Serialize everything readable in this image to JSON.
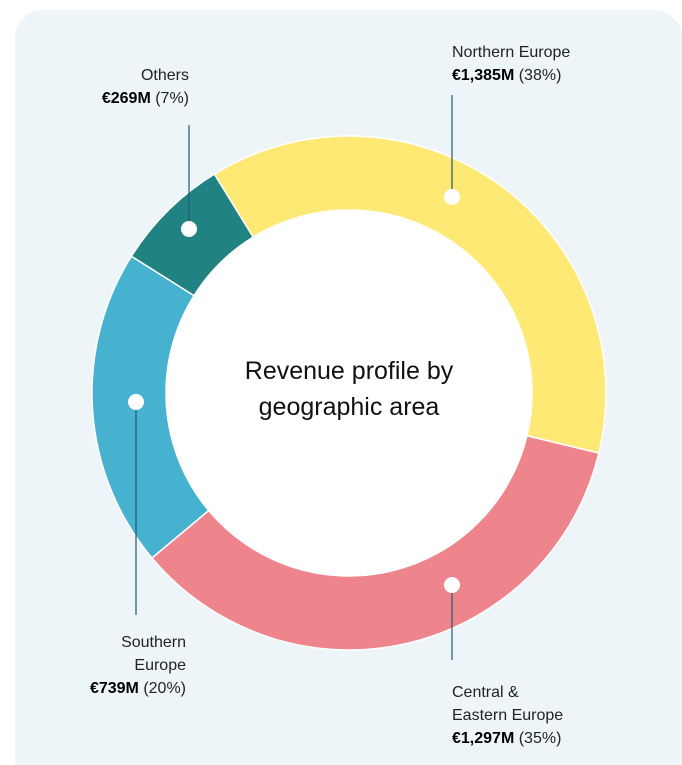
{
  "chart_data": {
    "type": "donut",
    "title": "Revenue profile by geographic area",
    "categories": [
      "Northern Europe",
      "Central & Eastern Europe",
      "Southern Europe",
      "Others"
    ],
    "values": [
      1385,
      1297,
      739,
      269
    ],
    "value_labels": [
      "€1,385M",
      "€1,297M",
      "€739M",
      "€269M"
    ],
    "share_labels": [
      "(38%)",
      "(35%)",
      "(20%)",
      "(7%)"
    ],
    "colors": [
      "#fde974",
      "#ef858c",
      "#46b2cf",
      "#218282"
    ]
  }
}
